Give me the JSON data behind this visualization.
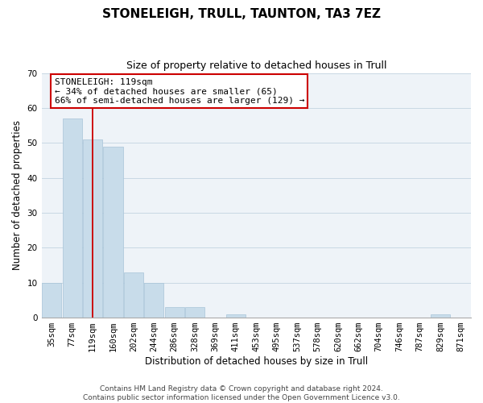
{
  "title": "STONELEIGH, TRULL, TAUNTON, TA3 7EZ",
  "subtitle": "Size of property relative to detached houses in Trull",
  "xlabel": "Distribution of detached houses by size in Trull",
  "ylabel": "Number of detached properties",
  "bins": [
    "35sqm",
    "77sqm",
    "119sqm",
    "160sqm",
    "202sqm",
    "244sqm",
    "286sqm",
    "328sqm",
    "369sqm",
    "411sqm",
    "453sqm",
    "495sqm",
    "537sqm",
    "578sqm",
    "620sqm",
    "662sqm",
    "704sqm",
    "746sqm",
    "787sqm",
    "829sqm",
    "871sqm"
  ],
  "values": [
    10,
    57,
    51,
    49,
    13,
    10,
    3,
    3,
    0,
    1,
    0,
    0,
    0,
    0,
    0,
    0,
    0,
    0,
    0,
    1,
    0
  ],
  "bar_color": "#c8dcea",
  "bar_edge_color": "#a8c4d8",
  "marker_line_color": "#cc0000",
  "marker_bin_index": 2,
  "annotation_title": "STONELEIGH: 119sqm",
  "annotation_line1": "← 34% of detached houses are smaller (65)",
  "annotation_line2": "66% of semi-detached houses are larger (129) →",
  "annotation_box_color": "#ffffff",
  "annotation_box_edge_color": "#cc0000",
  "ylim": [
    0,
    70
  ],
  "yticks": [
    0,
    10,
    20,
    30,
    40,
    50,
    60,
    70
  ],
  "footer_line1": "Contains HM Land Registry data © Crown copyright and database right 2024.",
  "footer_line2": "Contains public sector information licensed under the Open Government Licence v3.0.",
  "bg_color": "#ffffff",
  "plot_bg_color": "#eef3f8",
  "title_fontsize": 11,
  "subtitle_fontsize": 9,
  "axis_label_fontsize": 8.5,
  "tick_fontsize": 7.5,
  "annotation_fontsize": 8,
  "footer_fontsize": 6.5
}
